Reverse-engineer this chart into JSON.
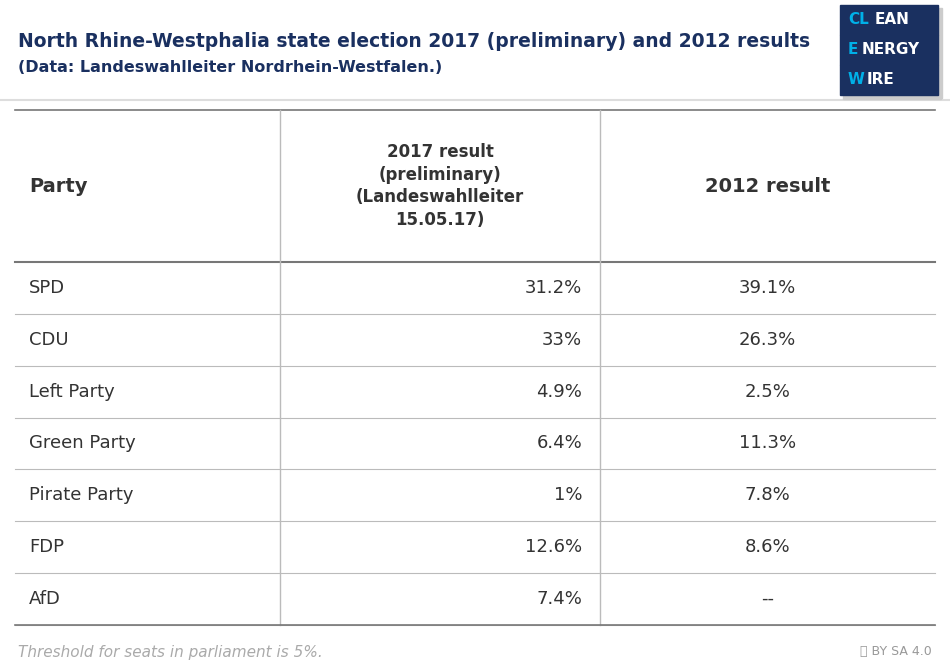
{
  "title_line1": "North Rhine-Westphalia state election 2017 (preliminary) and 2012 results",
  "title_line2": "(Data: Landeswahlleiter Nordrhein-Westfalen.)",
  "title_color": "#1a3060",
  "bg_color": "#ffffff",
  "col_header1": "Party",
  "col_header2": "2017 result\n(preliminary)\n(Landeswahlleiter\n15.05.17)",
  "col_header3": "2012 result",
  "parties": [
    "SPD",
    "CDU",
    "Left Party",
    "Green Party",
    "Pirate Party",
    "FDP",
    "AfD"
  ],
  "result_2017": [
    "31.2%",
    "33%",
    "4.9%",
    "6.4%",
    "1%",
    "12.6%",
    "7.4%"
  ],
  "result_2012": [
    "39.1%",
    "26.3%",
    "2.5%",
    "11.3%",
    "7.8%",
    "8.6%",
    "--"
  ],
  "footer_text": "Threshold for seats in parliament is 5%.",
  "footer_color": "#aaaaaa",
  "line_color": "#bbbbbb",
  "header_line_color": "#777777",
  "text_color": "#333333",
  "logo_dark_blue": "#1a3060",
  "logo_light_blue": "#00b0e8",
  "logo_white": "#ffffff",
  "shadow_color": "#cccccc"
}
